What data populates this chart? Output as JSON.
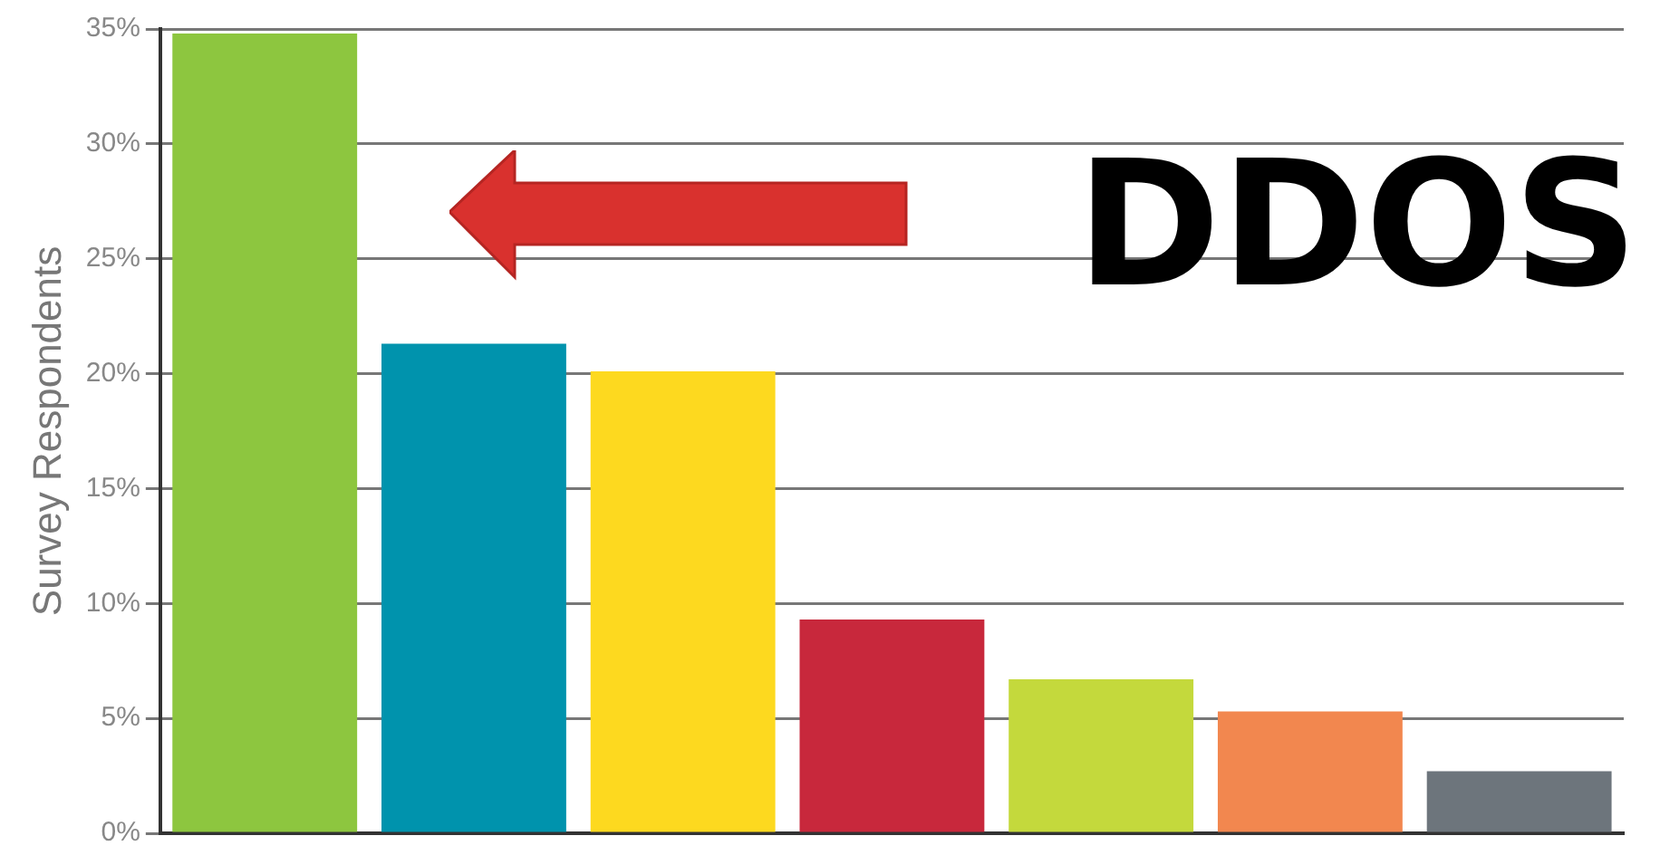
{
  "chart_data": {
    "type": "bar",
    "ylabel": "Survey Respondents",
    "categories": [
      null,
      null,
      null,
      null,
      null,
      null,
      null
    ],
    "values": [
      34.8,
      21.3,
      20.1,
      9.3,
      6.7,
      5.3,
      2.7
    ],
    "colors": [
      "#8dc63f",
      "#0093ad",
      "#fdd91f",
      "#c8283c",
      "#c4d93c",
      "#f2874f",
      "#6d757c"
    ],
    "ylim": [
      0,
      35
    ],
    "yticks": [
      {
        "value": 0,
        "label": "0%"
      },
      {
        "value": 5,
        "label": "5%"
      },
      {
        "value": 10,
        "label": "10%"
      },
      {
        "value": 15,
        "label": "15%"
      },
      {
        "value": 20,
        "label": "20%"
      },
      {
        "value": 25,
        "label": "25%"
      },
      {
        "value": 30,
        "label": "30%"
      },
      {
        "value": 35,
        "label": "35%"
      }
    ],
    "grid": "y",
    "tick_labels": "y",
    "annotations": [
      "DDOS"
    ]
  }
}
